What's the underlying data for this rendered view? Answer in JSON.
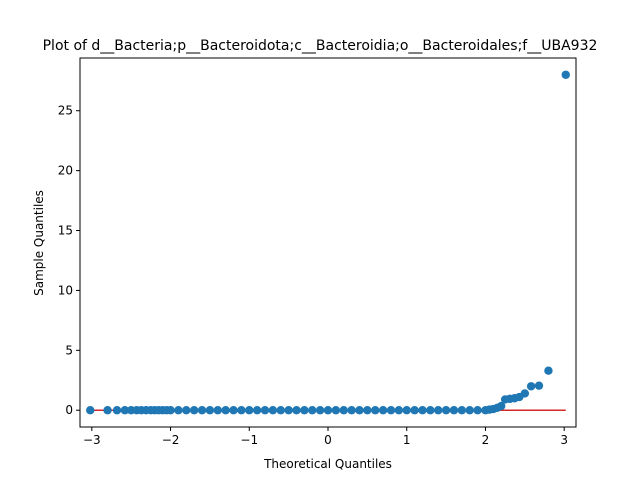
{
  "chart_data": {
    "type": "scatter",
    "title": "Plot of d__Bacteria;p__Bacteroidota;c__Bacteroidia;o__Bacteroidales;f__UBA932",
    "xlabel": "Theoretical Quantiles",
    "ylabel": "Sample Quantiles",
    "xlim": [
      -3.15,
      3.15
    ],
    "ylim": [
      -1.4,
      29.4
    ],
    "xticks": [
      -3,
      -2,
      -1,
      0,
      1,
      2,
      3
    ],
    "yticks": [
      0,
      5,
      10,
      15,
      20,
      25
    ],
    "grid": false,
    "legend": "none",
    "series": [
      {
        "marker_color": "#1f77b4",
        "x": [
          -3.02,
          -2.8,
          -2.68,
          -2.58,
          -2.5,
          -2.43,
          -2.37,
          -2.31,
          -2.25,
          -2.2,
          -2.15,
          -2.1,
          -2.05,
          -2.0,
          -1.9,
          -1.8,
          -1.7,
          -1.6,
          -1.5,
          -1.4,
          -1.3,
          -1.2,
          -1.1,
          -1.0,
          -0.9,
          -0.8,
          -0.7,
          -0.6,
          -0.5,
          -0.4,
          -0.3,
          -0.2,
          -0.1,
          0.0,
          0.1,
          0.2,
          0.3,
          0.4,
          0.5,
          0.6,
          0.7,
          0.8,
          0.9,
          1.0,
          1.1,
          1.2,
          1.3,
          1.4,
          1.5,
          1.6,
          1.7,
          1.8,
          1.9,
          2.0,
          2.05,
          2.1,
          2.15,
          2.2,
          2.25,
          2.31,
          2.37,
          2.43,
          2.5,
          2.58,
          2.68,
          2.8,
          3.02
        ],
        "y": [
          0,
          0,
          0,
          0,
          0,
          0,
          0,
          0,
          0,
          0,
          0,
          0,
          0,
          0,
          0,
          0,
          0,
          0,
          0,
          0,
          0,
          0,
          0,
          0,
          0,
          0,
          0,
          0,
          0,
          0,
          0,
          0,
          0,
          0,
          0,
          0,
          0,
          0,
          0,
          0,
          0,
          0,
          0,
          0,
          0,
          0,
          0,
          0,
          0,
          0,
          0,
          0,
          0,
          0,
          0.05,
          0.1,
          0.2,
          0.35,
          0.9,
          0.95,
          1.0,
          1.1,
          1.4,
          2.0,
          2.05,
          3.3,
          28.0
        ]
      }
    ],
    "reference_line": {
      "color": "#d62728",
      "x": [
        -3.02,
        3.02
      ],
      "y": [
        0,
        0
      ]
    }
  }
}
